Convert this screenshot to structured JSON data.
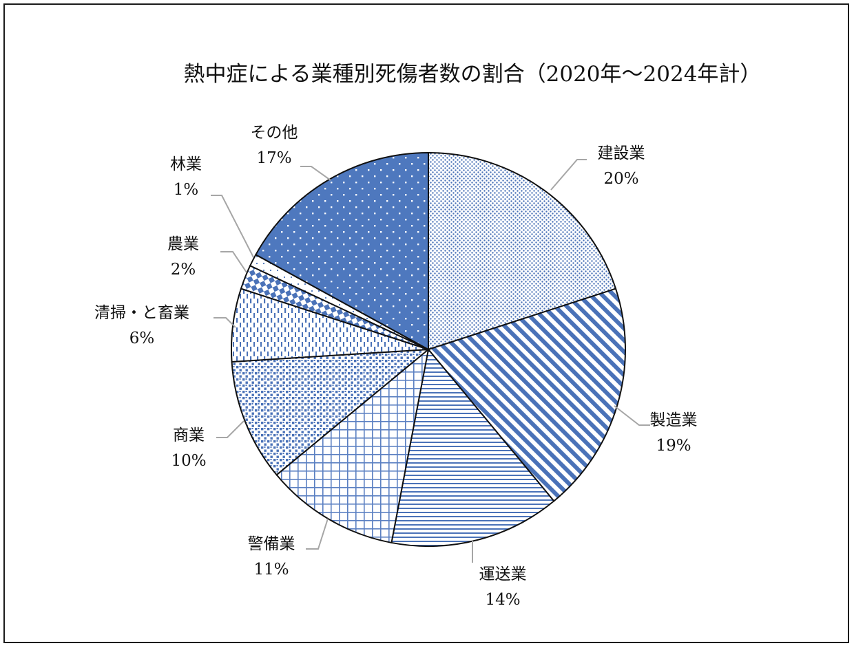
{
  "chart_data": {
    "type": "pie",
    "title": "熱中症による業種別死傷者数の割合（2020年～2024年計）",
    "legend": "none",
    "categories": [
      "建設業",
      "製造業",
      "運送業",
      "警備業",
      "商業",
      "清掃・と畜業",
      "農業",
      "林業",
      "その他"
    ],
    "values": [
      20,
      19,
      14,
      11,
      10,
      6,
      2,
      1,
      17
    ],
    "value_labels": [
      "20%",
      "19%",
      "14%",
      "11%",
      "10%",
      "6%",
      "2%",
      "1%",
      "17%"
    ],
    "colors": {
      "accent": "#4a72b8",
      "solid": "#4e78be",
      "edge": "#111111",
      "leader": "#a6a6a6"
    },
    "patterns": [
      "fine-dots",
      "diagonal-stripes",
      "horizontal-lines",
      "grid",
      "small-dots",
      "dashed-vertical",
      "checker",
      "sparse-dots",
      "white-dots-on-blue"
    ]
  }
}
